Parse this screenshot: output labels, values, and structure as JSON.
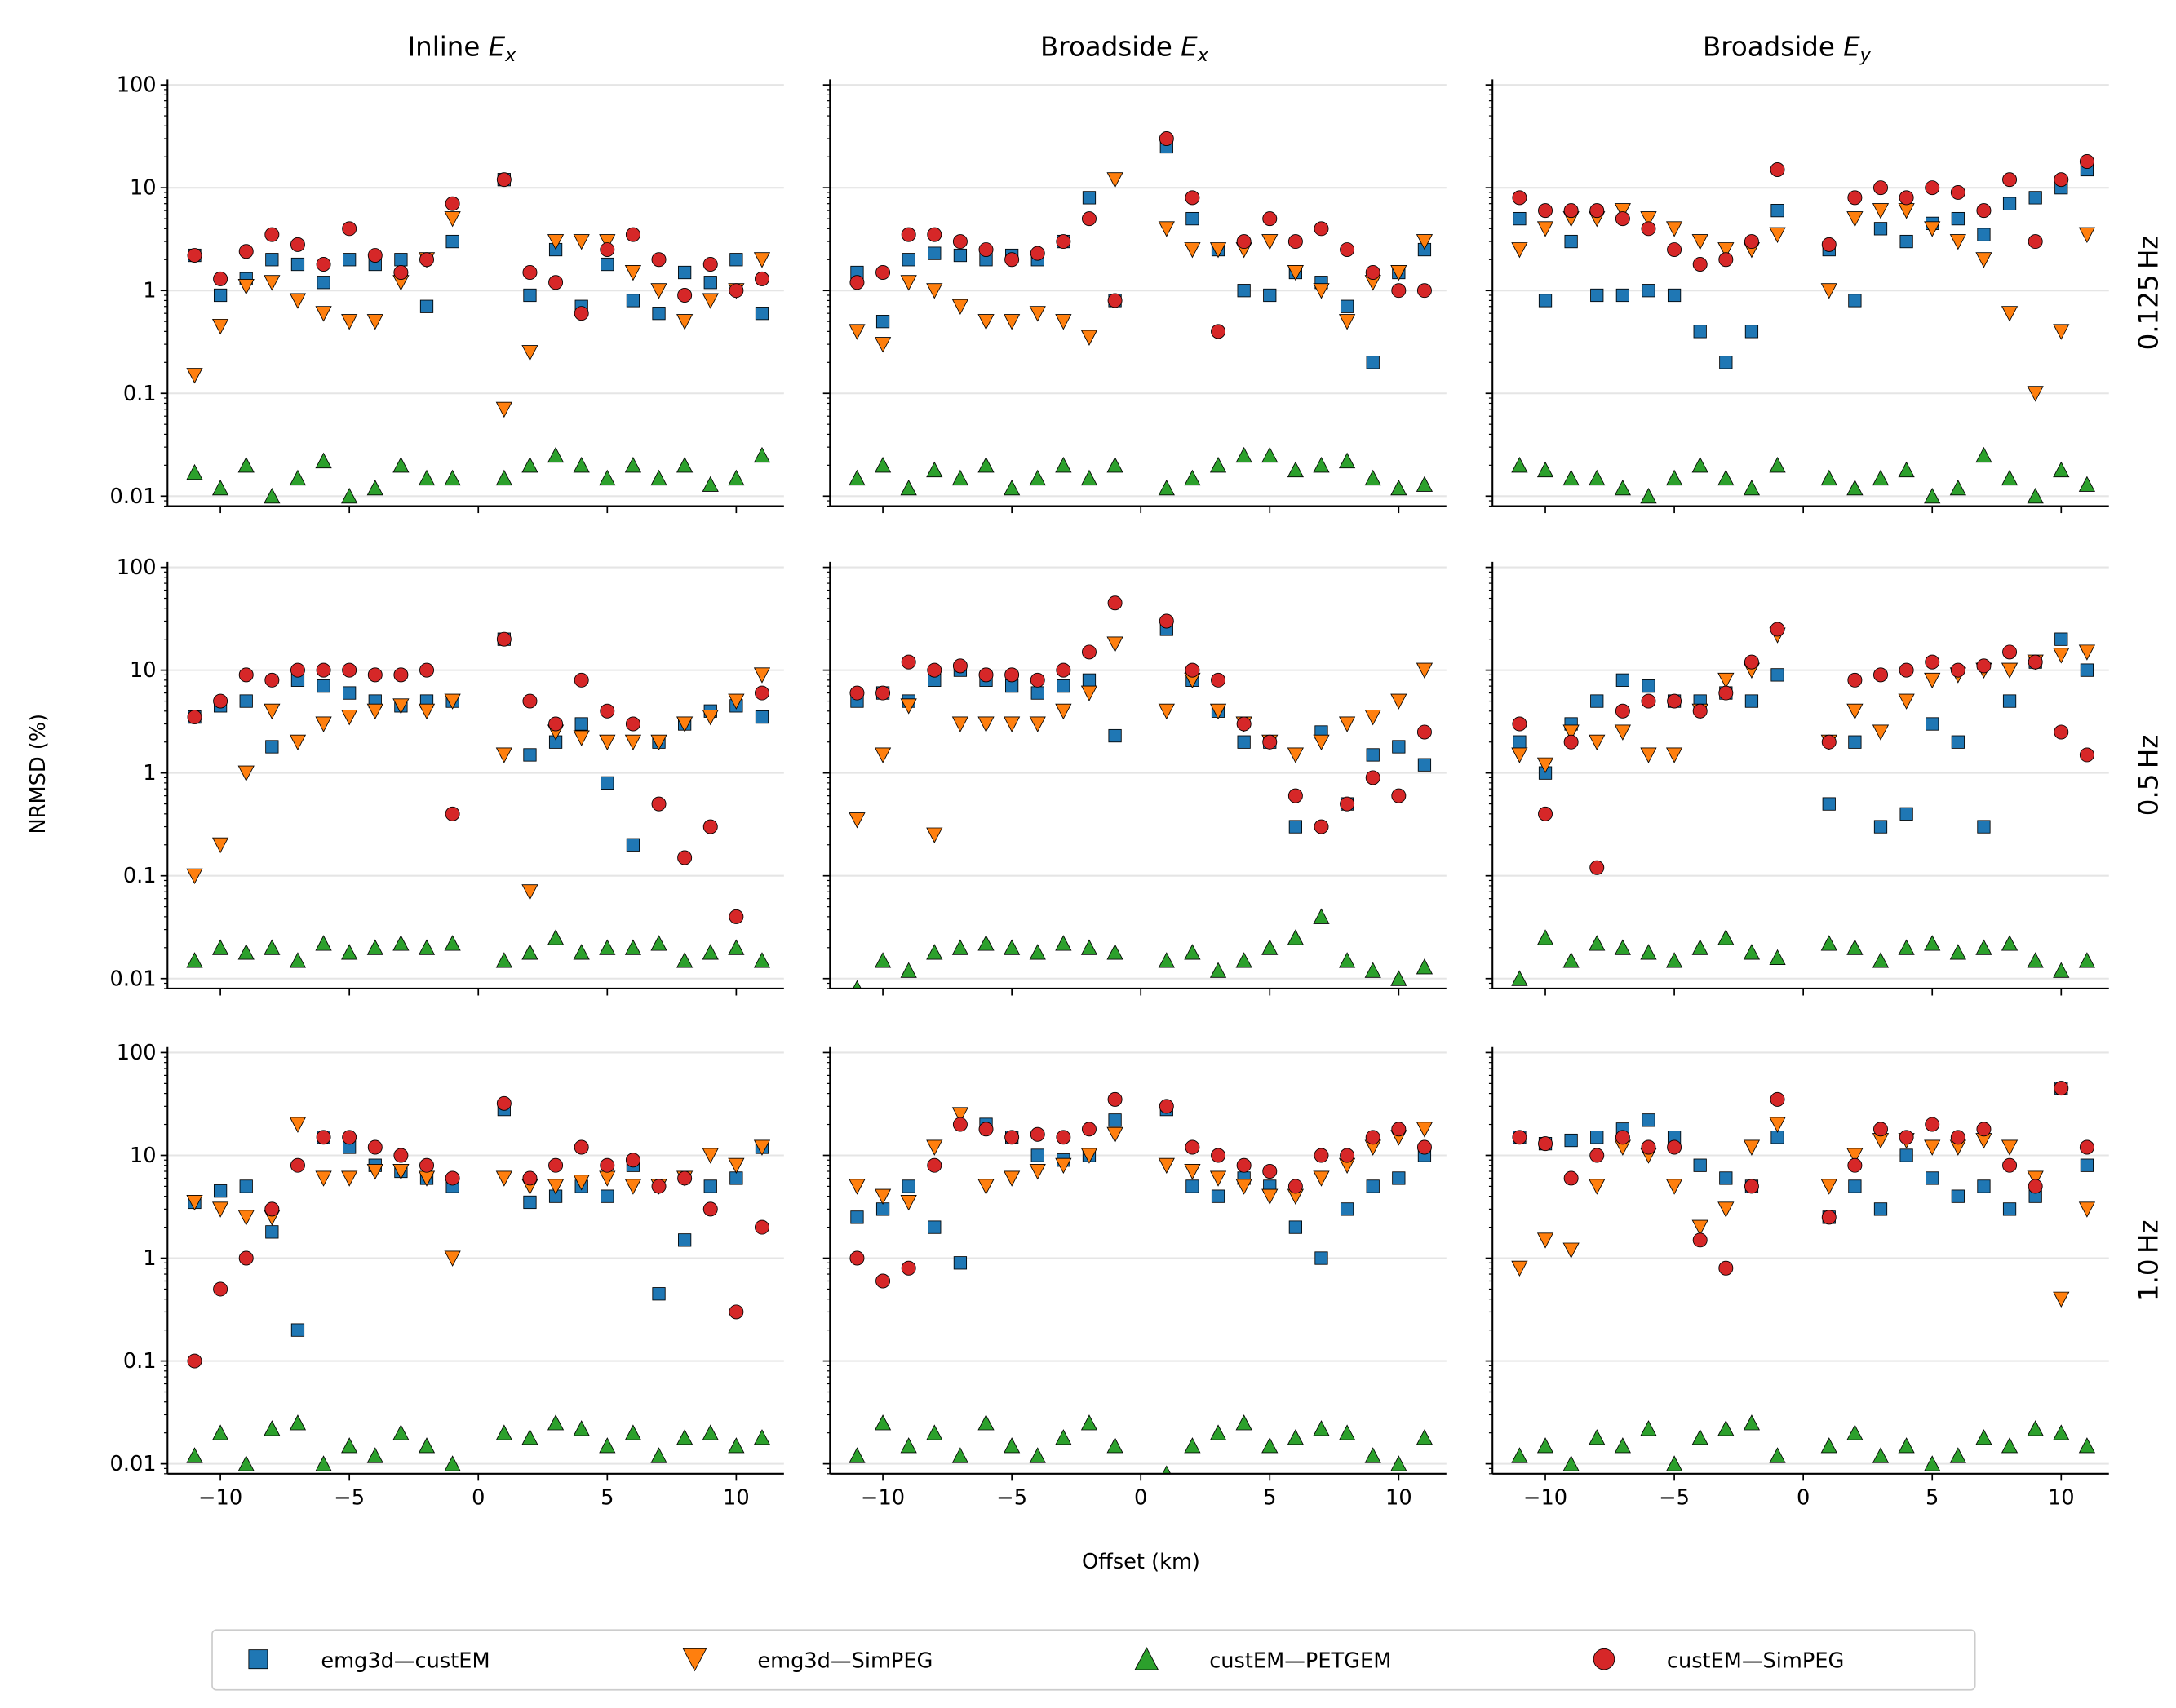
{
  "chart_data": {
    "type": "scatter",
    "layout": "3x3 small multiples",
    "xlabel": "Offset (km)",
    "ylabel": "NRMSD (%)",
    "xlim": [
      -12.05,
      11.85
    ],
    "ylim": [
      0.008,
      113
    ],
    "yscale": "log",
    "xticks": [
      -10,
      -5,
      0,
      5,
      10
    ],
    "xtick_labels": [
      "−10",
      "−5",
      "0",
      "5",
      "10"
    ],
    "yticks": [
      100,
      10,
      1,
      0.1,
      0.01
    ],
    "ytick_labels": [
      "100",
      "10",
      "1",
      "0.1",
      "0.01"
    ],
    "grid": "horizontal major gridlines",
    "legend_placement": "bottom-center",
    "columns": [
      {
        "prefix": "Inline",
        "var": "E",
        "sub": "x"
      },
      {
        "prefix": "Broadside",
        "var": "E",
        "sub": "x"
      },
      {
        "prefix": "Broadside",
        "var": "E",
        "sub": "y"
      }
    ],
    "rows": [
      "0.125 Hz",
      "0.5 Hz",
      "1.0 Hz"
    ],
    "series_styles": [
      {
        "name": "emg3d—custEM",
        "marker": "square",
        "color": "#1f77b4"
      },
      {
        "name": "emg3d—SimPEG",
        "marker": "triangle-down",
        "color": "#ff7f0e"
      },
      {
        "name": "custEM—PETGEM",
        "marker": "triangle-up",
        "color": "#2ca02c"
      },
      {
        "name": "custEM—SimPEG",
        "marker": "circle",
        "color": "#d62728"
      }
    ],
    "x": [
      -11,
      -10,
      -9,
      -8,
      -7,
      -6,
      -5,
      -4,
      -3,
      -2,
      -1,
      1,
      2,
      3,
      4,
      5,
      6,
      7,
      8,
      9,
      10,
      11
    ],
    "panels": [
      [
        [
          [
            2.2,
            0.9,
            1.3,
            2.0,
            1.8,
            1.2,
            2.0,
            1.8,
            2.0,
            0.7,
            3.0,
            12,
            0.9,
            2.5,
            0.7,
            1.8,
            0.8,
            0.6,
            1.5,
            1.2,
            2.0,
            0.6
          ],
          [
            0.15,
            0.45,
            1.1,
            1.2,
            0.8,
            0.6,
            0.5,
            0.5,
            1.2,
            2.0,
            5,
            0.07,
            0.25,
            3.0,
            3.0,
            3.0,
            1.5,
            1.0,
            0.5,
            0.8,
            1.0,
            2.0
          ],
          [
            0.017,
            0.012,
            0.02,
            0.01,
            0.015,
            0.022,
            0.01,
            0.012,
            0.02,
            0.015,
            0.015,
            0.015,
            0.02,
            0.025,
            0.02,
            0.015,
            0.02,
            0.015,
            0.02,
            0.013,
            0.015,
            0.025
          ],
          [
            2.2,
            1.3,
            2.4,
            3.5,
            2.8,
            1.8,
            4.0,
            2.2,
            1.5,
            2.0,
            7.0,
            12,
            1.5,
            1.2,
            0.6,
            2.5,
            3.5,
            2.0,
            0.9,
            1.8,
            1.0,
            1.3
          ]
        ],
        [
          [
            1.5,
            0.5,
            2.0,
            2.3,
            2.2,
            2.0,
            2.2,
            2.0,
            3.0,
            8.0,
            0.8,
            25,
            5,
            2.5,
            1.0,
            0.9,
            1.5,
            1.2,
            0.7,
            0.2,
            1.5,
            2.5
          ],
          [
            0.4,
            0.3,
            1.2,
            1.0,
            0.7,
            0.5,
            0.5,
            0.6,
            0.5,
            0.35,
            12,
            4,
            2.5,
            2.5,
            2.5,
            3.0,
            1.5,
            1.0,
            0.5,
            1.2,
            1.5,
            3.0
          ],
          [
            0.015,
            0.02,
            0.012,
            0.018,
            0.015,
            0.02,
            0.012,
            0.015,
            0.02,
            0.015,
            0.02,
            0.012,
            0.015,
            0.02,
            0.025,
            0.025,
            0.018,
            0.02,
            0.022,
            0.015,
            0.012,
            0.013
          ],
          [
            1.2,
            1.5,
            3.5,
            3.5,
            3.0,
            2.5,
            2.0,
            2.3,
            3.0,
            5.0,
            0.8,
            30,
            8,
            0.4,
            3.0,
            5.0,
            3.0,
            4.0,
            2.5,
            1.5,
            1.0,
            1.0
          ]
        ],
        [
          [
            5,
            0.8,
            3.0,
            0.9,
            0.9,
            1.0,
            0.9,
            0.4,
            0.2,
            0.4,
            6,
            2.5,
            0.8,
            4,
            3,
            4.5,
            5,
            3.5,
            7,
            8,
            10,
            15
          ],
          [
            2.5,
            4,
            5,
            5,
            6,
            5,
            4,
            3,
            2.5,
            2.5,
            3.5,
            1.0,
            5,
            6,
            6,
            4,
            3,
            2,
            0.6,
            0.1,
            0.4,
            3.5
          ],
          [
            0.02,
            0.018,
            0.015,
            0.015,
            0.012,
            0.01,
            0.015,
            0.02,
            0.015,
            0.012,
            0.02,
            0.015,
            0.012,
            0.015,
            0.018,
            0.01,
            0.012,
            0.025,
            0.015,
            0.01,
            0.018,
            0.013
          ],
          [
            8,
            6,
            6,
            6,
            5,
            4,
            2.5,
            1.8,
            2.0,
            3,
            15,
            2.8,
            8,
            10,
            8,
            10,
            9,
            6,
            12,
            3,
            12,
            18
          ]
        ]
      ],
      [
        [
          [
            3.5,
            4.5,
            5,
            1.8,
            8,
            7,
            6,
            5,
            4.5,
            5,
            5,
            20,
            1.5,
            2.0,
            3,
            0.8,
            0.2,
            2.0,
            3,
            4,
            4.5,
            3.5
          ],
          [
            0.1,
            0.2,
            1.0,
            4,
            2.0,
            3,
            3.5,
            4,
            4.5,
            4,
            5,
            1.5,
            0.07,
            2.5,
            2.2,
            2,
            2,
            2,
            3,
            3.5,
            5,
            9
          ],
          [
            0.015,
            0.02,
            0.018,
            0.02,
            0.015,
            0.022,
            0.018,
            0.02,
            0.022,
            0.02,
            0.022,
            0.015,
            0.018,
            0.025,
            0.018,
            0.02,
            0.02,
            0.022,
            0.015,
            0.018,
            0.02,
            0.015
          ],
          [
            3.5,
            5,
            9,
            8,
            10,
            10,
            10,
            9,
            9,
            10,
            0.4,
            20,
            5,
            3,
            8,
            4,
            3,
            0.5,
            0.15,
            0.3,
            0.04,
            6
          ]
        ],
        [
          [
            5,
            6,
            5,
            8,
            10,
            8,
            7,
            6,
            7,
            8,
            2.3,
            25,
            8,
            4,
            2,
            2,
            0.3,
            2.5,
            0.5,
            1.5,
            1.8,
            1.2
          ],
          [
            0.35,
            1.5,
            4.5,
            0.25,
            3,
            3,
            3,
            3,
            4,
            6,
            18,
            4,
            8,
            4,
            3,
            2,
            1.5,
            2,
            3,
            3.5,
            5,
            10
          ],
          [
            0.008,
            0.015,
            0.012,
            0.018,
            0.02,
            0.022,
            0.02,
            0.018,
            0.022,
            0.02,
            0.018,
            0.015,
            0.018,
            0.012,
            0.015,
            0.02,
            0.025,
            0.04,
            0.015,
            0.012,
            0.01,
            0.013
          ],
          [
            6,
            6,
            12,
            10,
            11,
            9,
            9,
            8,
            10,
            15,
            45,
            30,
            10,
            8,
            3,
            2,
            0.6,
            0.3,
            0.5,
            0.9,
            0.6,
            2.5
          ]
        ],
        [
          [
            2,
            1.0,
            3,
            5,
            8,
            7,
            5,
            5,
            6,
            5,
            9,
            0.5,
            2,
            0.3,
            0.4,
            3,
            2,
            0.3,
            5,
            12,
            20,
            10
          ],
          [
            1.5,
            1.2,
            2.5,
            2.0,
            2.5,
            1.5,
            1.5,
            4,
            8,
            10,
            22,
            2,
            4,
            2.5,
            5,
            8,
            9,
            10,
            10,
            12,
            14,
            15
          ],
          [
            0.01,
            0.025,
            0.015,
            0.022,
            0.02,
            0.018,
            0.015,
            0.02,
            0.025,
            0.018,
            0.016,
            0.022,
            0.02,
            0.015,
            0.02,
            0.022,
            0.018,
            0.02,
            0.022,
            0.015,
            0.012,
            0.015
          ],
          [
            3,
            0.4,
            2,
            0.12,
            4,
            5,
            5,
            4,
            6,
            12,
            25,
            2,
            8,
            9,
            10,
            12,
            10,
            11,
            15,
            12,
            2.5,
            1.5
          ]
        ]
      ],
      [
        [
          [
            3.5,
            4.5,
            5,
            1.8,
            0.2,
            15,
            12,
            8,
            7,
            6,
            5,
            28,
            3.5,
            4,
            5,
            4,
            8,
            0.45,
            1.5,
            5,
            6,
            12
          ],
          [
            3.5,
            3,
            2.5,
            2.5,
            20,
            6,
            6,
            7,
            7,
            6,
            1.0,
            6,
            5,
            5,
            5.5,
            6,
            5,
            5,
            6,
            10,
            8,
            12
          ],
          [
            0.012,
            0.02,
            0.01,
            0.022,
            0.025,
            0.01,
            0.015,
            0.012,
            0.02,
            0.015,
            0.01,
            0.02,
            0.018,
            0.025,
            0.022,
            0.015,
            0.02,
            0.012,
            0.018,
            0.02,
            0.015,
            0.018
          ],
          [
            0.1,
            0.5,
            1.0,
            3,
            8,
            15,
            15,
            12,
            10,
            8,
            6,
            32,
            6,
            8,
            12,
            8,
            9,
            5,
            6,
            3,
            0.3,
            2
          ]
        ],
        [
          [
            2.5,
            3,
            5,
            2,
            0.9,
            20,
            15,
            10,
            9,
            10,
            22,
            28,
            5,
            4,
            6,
            5,
            2,
            1.0,
            3,
            5,
            6,
            10
          ],
          [
            5,
            4,
            3.5,
            12,
            25,
            5,
            6,
            7,
            8,
            10,
            16,
            8,
            7,
            6,
            5,
            4,
            4,
            6,
            8,
            12,
            15,
            18
          ],
          [
            0.012,
            0.025,
            0.015,
            0.02,
            0.012,
            0.025,
            0.015,
            0.012,
            0.018,
            0.025,
            0.015,
            0.008,
            0.015,
            0.02,
            0.025,
            0.015,
            0.018,
            0.022,
            0.02,
            0.012,
            0.01,
            0.018
          ],
          [
            1.0,
            0.6,
            0.8,
            8,
            20,
            18,
            15,
            16,
            15,
            18,
            35,
            30,
            12,
            10,
            8,
            7,
            5,
            10,
            10,
            15,
            18,
            12
          ]
        ],
        [
          [
            15,
            13,
            14,
            15,
            18,
            22,
            15,
            8,
            6,
            5,
            15,
            2.5,
            5,
            3,
            10,
            6,
            4,
            5,
            3,
            4,
            45,
            8
          ],
          [
            0.8,
            1.5,
            1.2,
            5,
            12,
            10,
            5,
            2,
            3,
            12,
            20,
            5,
            10,
            14,
            14,
            12,
            12,
            14,
            12,
            6,
            0.4,
            3
          ],
          [
            0.012,
            0.015,
            0.01,
            0.018,
            0.015,
            0.022,
            0.01,
            0.018,
            0.022,
            0.025,
            0.012,
            0.015,
            0.02,
            0.012,
            0.015,
            0.01,
            0.012,
            0.018,
            0.015,
            0.022,
            0.02,
            0.015
          ],
          [
            15,
            13,
            6,
            10,
            15,
            12,
            12,
            1.5,
            0.8,
            5,
            35,
            2.5,
            8,
            18,
            15,
            20,
            15,
            18,
            8,
            5,
            45,
            12
          ]
        ]
      ]
    ]
  }
}
